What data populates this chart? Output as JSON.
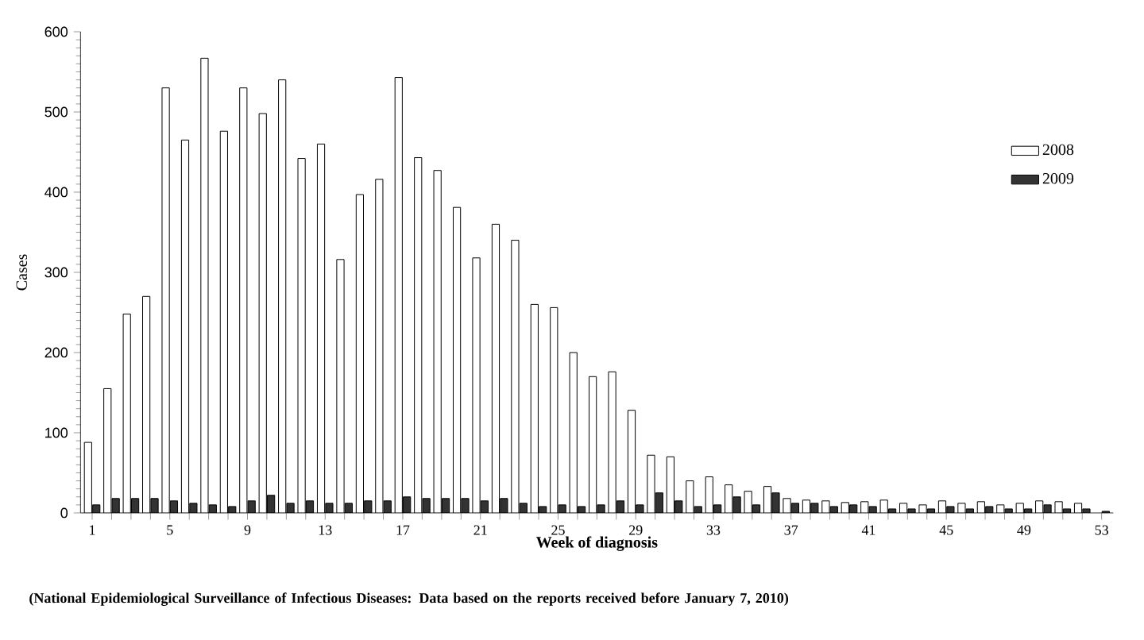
{
  "chart_data": {
    "type": "bar",
    "xlabel": "Week of diagnosis",
    "ylabel": "Cases",
    "categories": [
      "1",
      null,
      null,
      null,
      "5",
      null,
      null,
      null,
      "9",
      null,
      null,
      null,
      "13",
      null,
      null,
      null,
      "17",
      null,
      null,
      null,
      "21",
      null,
      null,
      null,
      "25",
      null,
      null,
      null,
      "29",
      null,
      null,
      null,
      "33",
      null,
      null,
      null,
      "37",
      null,
      null,
      null,
      "41",
      null,
      null,
      null,
      "45",
      null,
      null,
      null,
      "49",
      null,
      null,
      null,
      "53"
    ],
    "series": [
      {
        "name": "2008",
        "color": "#ffffff",
        "values": [
          88,
          155,
          248,
          270,
          530,
          465,
          567,
          476,
          530,
          498,
          540,
          442,
          460,
          316,
          397,
          416,
          543,
          443,
          427,
          381,
          318,
          360,
          340,
          260,
          256,
          200,
          170,
          176,
          128,
          72,
          70,
          40,
          45,
          35,
          27,
          33,
          18,
          16,
          15,
          13,
          14,
          16,
          12,
          10,
          15,
          12,
          14,
          10,
          12,
          15,
          14,
          12,
          null
        ]
      },
      {
        "name": "2009",
        "color": "#333333",
        "values": [
          10,
          18,
          18,
          18,
          15,
          12,
          10,
          8,
          15,
          22,
          12,
          15,
          12,
          12,
          15,
          15,
          20,
          18,
          18,
          18,
          15,
          18,
          12,
          8,
          10,
          8,
          10,
          15,
          10,
          25,
          15,
          8,
          10,
          20,
          10,
          25,
          12,
          12,
          8,
          10,
          8,
          5,
          5,
          5,
          8,
          5,
          8,
          5,
          5,
          10,
          5,
          5,
          2
        ]
      }
    ],
    "ylim": [
      0,
      600
    ],
    "yticks": [
      0,
      100,
      200,
      300,
      400,
      500,
      600
    ],
    "legend": "top right",
    "grid": false,
    "annotations": [
      "(National Epidemiological Surveillance of Infectious Diseases: Data based on the reports received before January 7, 2010)"
    ]
  }
}
